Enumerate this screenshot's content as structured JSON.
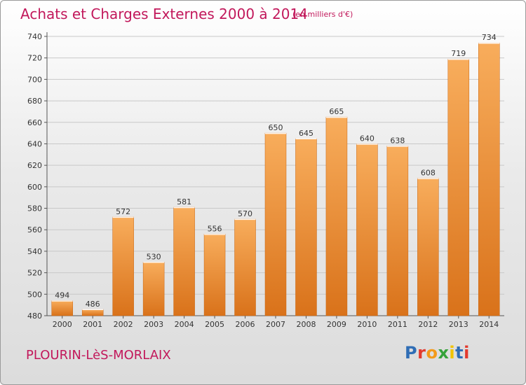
{
  "header": {
    "title": "Achats et Charges Externes 2000 à 2014",
    "subtitle": "(en milliers d'€)"
  },
  "footer": {
    "commune": "PLOURIN-LèS-MORLAIX",
    "logo": "Proxiti",
    "logo_colors": [
      "#2f6db5",
      "#e23a2e",
      "#f39a1a",
      "#35a23a",
      "#f2c300",
      "#2f6db5",
      "#e23a2e"
    ]
  },
  "colors": {
    "title": "#c2185b",
    "bar_light": "#f8ad5c",
    "bar_dark": "#d9721a",
    "axis": "#555555",
    "grid": "#c8c8c8"
  },
  "chart_data": {
    "type": "bar",
    "title": "Achats et Charges Externes 2000 à 2014",
    "subtitle": "(en milliers d'€)",
    "categories": [
      "2000",
      "2001",
      "2002",
      "2003",
      "2004",
      "2005",
      "2006",
      "2007",
      "2008",
      "2009",
      "2010",
      "2011",
      "2012",
      "2013",
      "2014"
    ],
    "values": [
      494,
      486,
      572,
      530,
      581,
      556,
      570,
      650,
      645,
      665,
      640,
      638,
      608,
      719,
      734
    ],
    "xlabel": "",
    "ylabel": "",
    "ylim": [
      480,
      740
    ],
    "yticks": [
      480,
      500,
      520,
      540,
      560,
      580,
      600,
      620,
      640,
      660,
      680,
      700,
      720,
      740
    ],
    "grid": true,
    "data_labels": true
  }
}
